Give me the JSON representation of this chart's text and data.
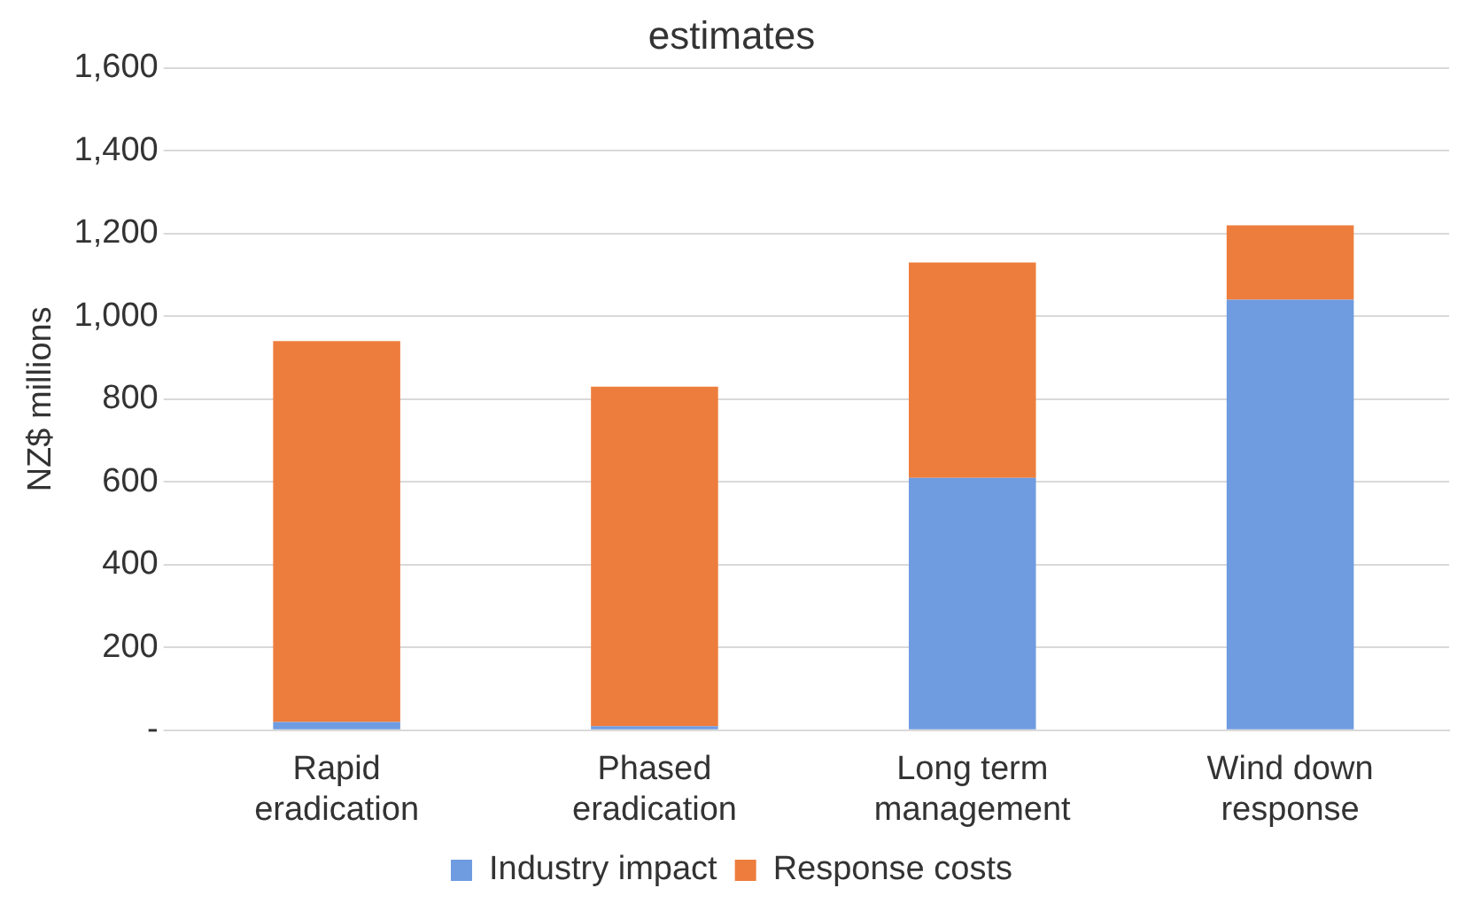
{
  "chart_data": {
    "type": "bar",
    "title": "estimates",
    "ylabel": "NZ$ millions",
    "categories": [
      "Rapid eradication",
      "Phased eradication",
      "Long term management",
      "Wind down response"
    ],
    "stacked": true,
    "series": [
      {
        "name": "Industry impact",
        "color": "#6f9be0",
        "values": [
          20,
          10,
          610,
          1040
        ]
      },
      {
        "name": "Response costs",
        "color": "#ed7d3c",
        "values": [
          920,
          820,
          520,
          180
        ]
      }
    ],
    "ylim": [
      0,
      1600
    ],
    "yticks": [
      {
        "value": 0,
        "label": "-"
      },
      {
        "value": 200,
        "label": "200"
      },
      {
        "value": 400,
        "label": "400"
      },
      {
        "value": 600,
        "label": "600"
      },
      {
        "value": 800,
        "label": "800"
      },
      {
        "value": 1000,
        "label": "1,000"
      },
      {
        "value": 1200,
        "label": "1,200"
      },
      {
        "value": 1400,
        "label": "1,400"
      },
      {
        "value": 1600,
        "label": "1,600"
      }
    ],
    "grid": "y",
    "legend": "bottom"
  }
}
